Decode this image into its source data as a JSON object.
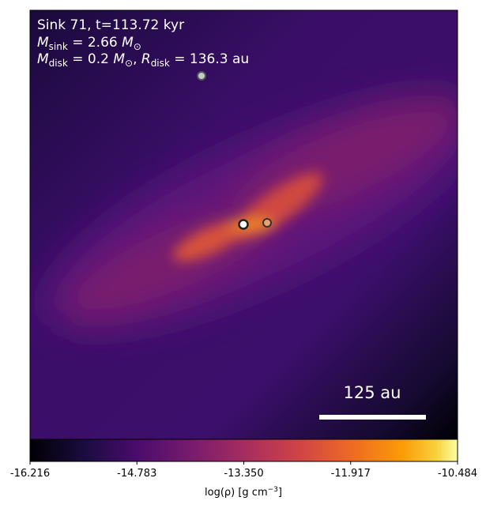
{
  "chart_data": {
    "type": "density-map",
    "annotation_lines": [
      [
        "Sink 71, t=113.72 kyr"
      ],
      [
        "M",
        "sink",
        " = 2.66 ",
        "M",
        "⊙"
      ],
      [
        "M",
        "disk",
        " = 0.2 ",
        "M",
        "⊙",
        ", ",
        "R",
        "disk",
        " = 136.3 au"
      ]
    ],
    "scale_bar_label": "125 au",
    "colorbar": {
      "label": "log(ρ) [g cm",
      "label_exponent": "−3",
      "label_end": "]",
      "clim": [
        -16.216,
        -10.484
      ],
      "ticks": [
        -16.216,
        -14.783,
        {
          "value": -13.35,
          "label": "-13.350"
        },
        -11.917,
        -10.484
      ],
      "colormap": "inferno"
    }
  }
}
